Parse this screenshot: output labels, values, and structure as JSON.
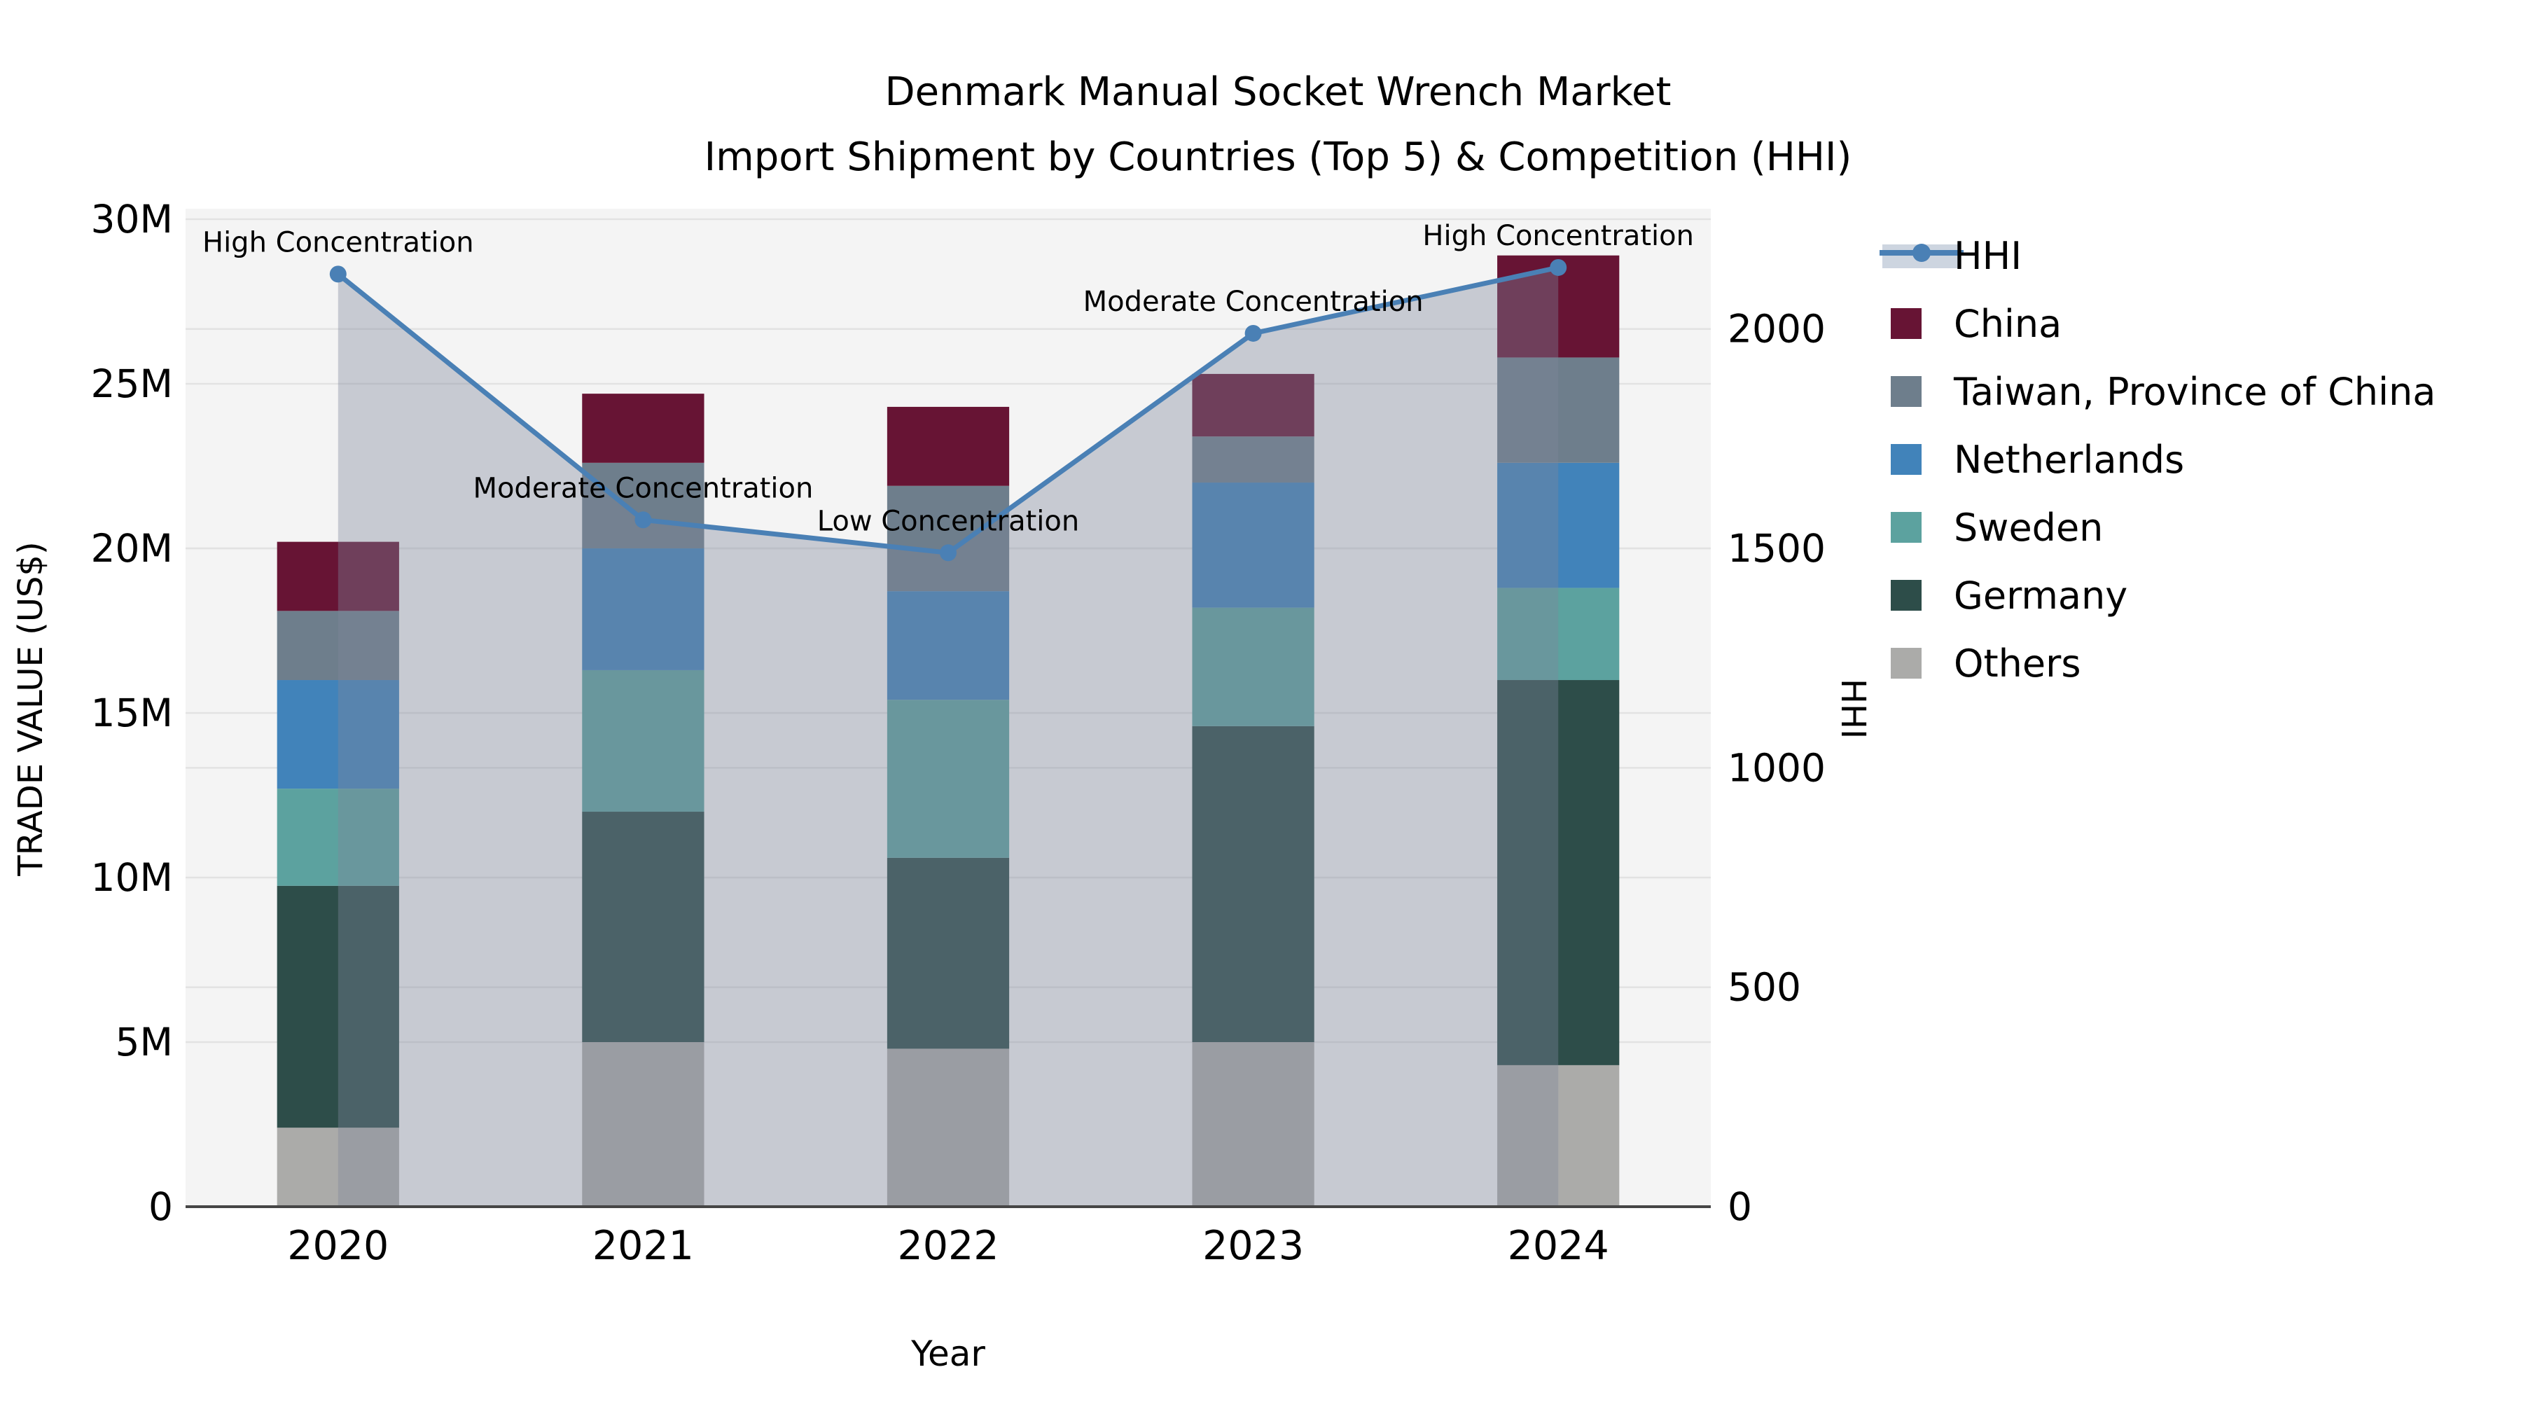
{
  "title": {
    "line1": "Denmark Manual Socket Wrench Market",
    "line2": "Import Shipment by Countries (Top 5) & Competition (HHI)"
  },
  "chart_data": {
    "type": "bar+line",
    "categories": [
      "2020",
      "2021",
      "2022",
      "2023",
      "2024"
    ],
    "unit": "million US$",
    "series": [
      {
        "name": "Others",
        "color": "#ABABA9",
        "values": [
          2.4,
          5.0,
          4.8,
          5.0,
          4.3
        ]
      },
      {
        "name": "Germany",
        "color": "#2D4D49",
        "values": [
          7.35,
          7.0,
          5.8,
          9.6,
          11.7
        ]
      },
      {
        "name": "Sweden",
        "color": "#5CA29F",
        "values": [
          2.95,
          4.3,
          4.8,
          3.6,
          2.8
        ]
      },
      {
        "name": "Netherlands",
        "color": "#4183BA",
        "values": [
          3.3,
          3.7,
          3.3,
          3.8,
          3.8
        ]
      },
      {
        "name": "Taiwan, Province of China",
        "color": "#6E7E8C",
        "values": [
          2.1,
          2.6,
          3.2,
          1.4,
          3.2
        ]
      },
      {
        "name": "China",
        "color": "#671434",
        "values": [
          2.1,
          2.1,
          2.4,
          1.9,
          3.1
        ]
      }
    ],
    "totals": [
      20.2,
      24.7,
      24.3,
      25.3,
      28.9
    ],
    "hhi": {
      "name": "HHI",
      "line_color": "#4A80B5",
      "area_fill": "rgba(125,135,155,0.38)",
      "values": [
        2125,
        1565,
        1490,
        1990,
        2140
      ],
      "annotations": [
        "High Concentration",
        "Moderate Concentration",
        "Low Concentration",
        "Moderate Concentration",
        "High Concentration"
      ]
    },
    "axes": {
      "left": {
        "label": "TRADE VALUE (US$)",
        "tick_values": [
          0,
          5,
          10,
          15,
          20,
          25,
          30
        ],
        "tick_labels": [
          "0",
          "5M",
          "10M",
          "15M",
          "20M",
          "25M",
          "30M"
        ],
        "max": 30.32
      },
      "right": {
        "label": "HHI",
        "tick_values": [
          0,
          500,
          1000,
          1500,
          2000
        ],
        "tick_labels": [
          "0",
          "500",
          "1000",
          "1500",
          "2000"
        ],
        "max": 2274
      },
      "x": {
        "label": "Year"
      }
    },
    "legend": {
      "position": "right",
      "items": [
        {
          "label": "HHI",
          "swatch": "line"
        },
        {
          "label": "China",
          "swatch": "#671434"
        },
        {
          "label": "Taiwan, Province of China",
          "swatch": "#6E7E8C"
        },
        {
          "label": "Netherlands",
          "swatch": "#4183BA"
        },
        {
          "label": "Sweden",
          "swatch": "#5CA29F"
        },
        {
          "label": "Germany",
          "swatch": "#2D4D49"
        },
        {
          "label": "Others",
          "swatch": "#ABABA9"
        }
      ]
    },
    "grid": true,
    "style": {
      "plot_bg": "#F4F4F4",
      "grid_color": "#E2E2E2",
      "spine_color": "#464646",
      "hhi_band": "#CDD5E0"
    }
  }
}
